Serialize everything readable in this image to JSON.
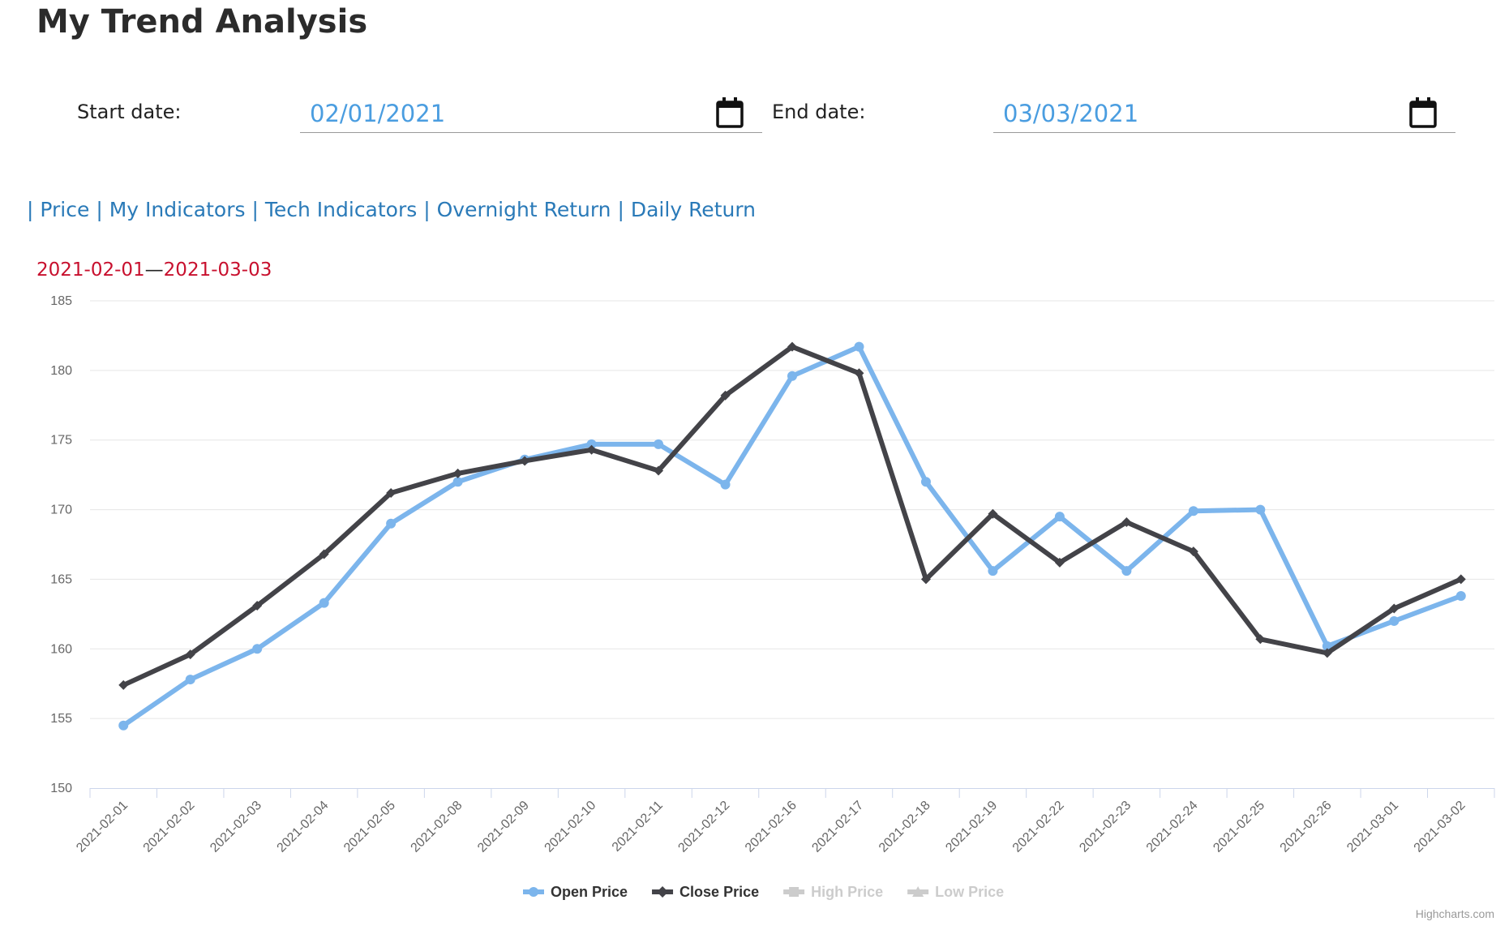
{
  "header": {
    "title": "My Trend Analysis"
  },
  "date_inputs": [
    {
      "label": "Start date:",
      "value": "02/01/2021"
    },
    {
      "label": "End date:",
      "value": "03/03/2021"
    }
  ],
  "nav_links": [
    "Price",
    "My Indicators",
    "Tech Indicators",
    "Overnight Return",
    "Daily Return"
  ],
  "range": {
    "start": "2021-02-01",
    "separator": "—",
    "end": "2021-03-03"
  },
  "chart_data": {
    "type": "line",
    "categories": [
      "2021-02-01",
      "2021-02-02",
      "2021-02-03",
      "2021-02-04",
      "2021-02-05",
      "2021-02-08",
      "2021-02-09",
      "2021-02-10",
      "2021-02-11",
      "2021-02-12",
      "2021-02-16",
      "2021-02-17",
      "2021-02-18",
      "2021-02-19",
      "2021-02-22",
      "2021-02-23",
      "2021-02-24",
      "2021-02-25",
      "2021-02-26",
      "2021-03-01",
      "2021-03-02"
    ],
    "series": [
      {
        "name": "Open Price",
        "color": "#7cb5ec",
        "values": [
          154.5,
          157.8,
          160.0,
          163.3,
          169.0,
          172.0,
          173.6,
          174.7,
          174.7,
          171.8,
          179.6,
          181.7,
          172.0,
          165.6,
          169.5,
          165.6,
          169.9,
          170.0,
          160.2,
          162.0,
          163.8
        ]
      },
      {
        "name": "Close Price",
        "color": "#434348",
        "values": [
          157.4,
          159.6,
          163.1,
          166.8,
          171.2,
          172.6,
          173.5,
          174.3,
          172.8,
          178.2,
          181.7,
          179.8,
          165.0,
          169.7,
          166.2,
          169.1,
          167.0,
          160.7,
          159.7,
          162.9,
          165.0
        ]
      }
    ],
    "hidden_series": [
      {
        "name": "High Price",
        "color": "#cccccc"
      },
      {
        "name": "Low Price",
        "color": "#cccccc"
      }
    ],
    "ylim": [
      150,
      185
    ],
    "yticks": [
      150,
      155,
      160,
      165,
      170,
      175,
      180,
      185
    ],
    "grid": true,
    "legend": "bottom",
    "credits": "Highcharts.com"
  }
}
